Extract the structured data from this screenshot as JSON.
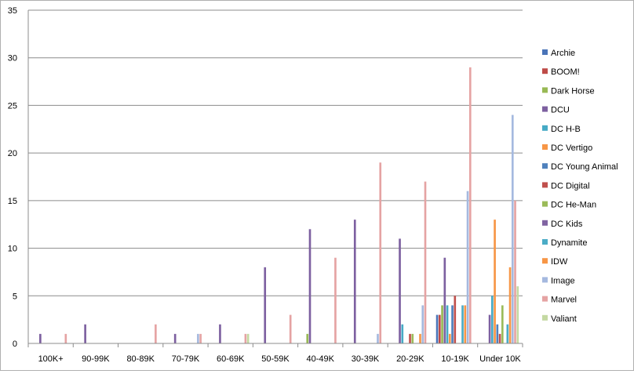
{
  "chart_data": {
    "type": "bar",
    "title": "",
    "xlabel": "",
    "ylabel": "",
    "ylim": [
      0,
      35
    ],
    "yticks": [
      0,
      5,
      10,
      15,
      20,
      25,
      30,
      35
    ],
    "grid": true,
    "legend_position": "right",
    "categories": [
      "100K+",
      "90-99K",
      "80-89K",
      "70-79K",
      "60-69K",
      "50-59K",
      "40-49K",
      "30-39K",
      "20-29K",
      "10-19K",
      "Under 10K"
    ],
    "series": [
      {
        "name": "Archie",
        "color": "#4a74b8",
        "values": [
          0,
          0,
          0,
          0,
          0,
          0,
          0,
          0,
          0,
          3,
          0
        ]
      },
      {
        "name": "BOOM!",
        "color": "#be4b48",
        "values": [
          0,
          0,
          0,
          0,
          0,
          0,
          0,
          0,
          0,
          3,
          0
        ]
      },
      {
        "name": "Dark Horse",
        "color": "#98b954",
        "values": [
          0,
          0,
          0,
          0,
          0,
          0,
          1,
          0,
          0,
          4,
          0
        ]
      },
      {
        "name": "DCU",
        "color": "#7d60a0",
        "values": [
          1,
          2,
          0,
          1,
          2,
          8,
          12,
          13,
          11,
          9,
          3
        ]
      },
      {
        "name": "DC H-B",
        "color": "#46aac5",
        "values": [
          0,
          0,
          0,
          0,
          0,
          0,
          0,
          0,
          2,
          4,
          5
        ]
      },
      {
        "name": "DC Vertigo",
        "color": "#f79646",
        "values": [
          0,
          0,
          0,
          0,
          0,
          0,
          0,
          0,
          0,
          1,
          13
        ]
      },
      {
        "name": "DC Young Animal",
        "color": "#4f81bd",
        "values": [
          0,
          0,
          0,
          0,
          0,
          0,
          0,
          0,
          0,
          4,
          2
        ]
      },
      {
        "name": "DC Digital",
        "color": "#c0504d",
        "values": [
          0,
          0,
          0,
          0,
          0,
          0,
          0,
          0,
          1,
          5,
          1
        ]
      },
      {
        "name": "DC He-Man",
        "color": "#9bbb59",
        "values": [
          0,
          0,
          0,
          0,
          0,
          0,
          0,
          0,
          1,
          0,
          4
        ]
      },
      {
        "name": "DC Kids",
        "color": "#8064a2",
        "values": [
          0,
          0,
          0,
          0,
          0,
          0,
          0,
          0,
          0,
          0,
          0
        ]
      },
      {
        "name": "Dynamite",
        "color": "#4bacc6",
        "values": [
          0,
          0,
          0,
          0,
          0,
          0,
          0,
          0,
          0,
          4,
          2
        ]
      },
      {
        "name": "IDW",
        "color": "#f79646",
        "values": [
          0,
          0,
          0,
          0,
          0,
          0,
          0,
          0,
          1,
          4,
          8
        ]
      },
      {
        "name": "Image",
        "color": "#a5b9df",
        "values": [
          0,
          0,
          0,
          1,
          0,
          0,
          0,
          1,
          4,
          16,
          24
        ]
      },
      {
        "name": "Marvel",
        "color": "#e5a3a3",
        "values": [
          1,
          0,
          2,
          1,
          1,
          3,
          9,
          19,
          17,
          29,
          15
        ]
      },
      {
        "name": "Valiant",
        "color": "#c4d9a2",
        "values": [
          0,
          0,
          0,
          0,
          1,
          0,
          0,
          0,
          0,
          0,
          6
        ]
      }
    ]
  }
}
